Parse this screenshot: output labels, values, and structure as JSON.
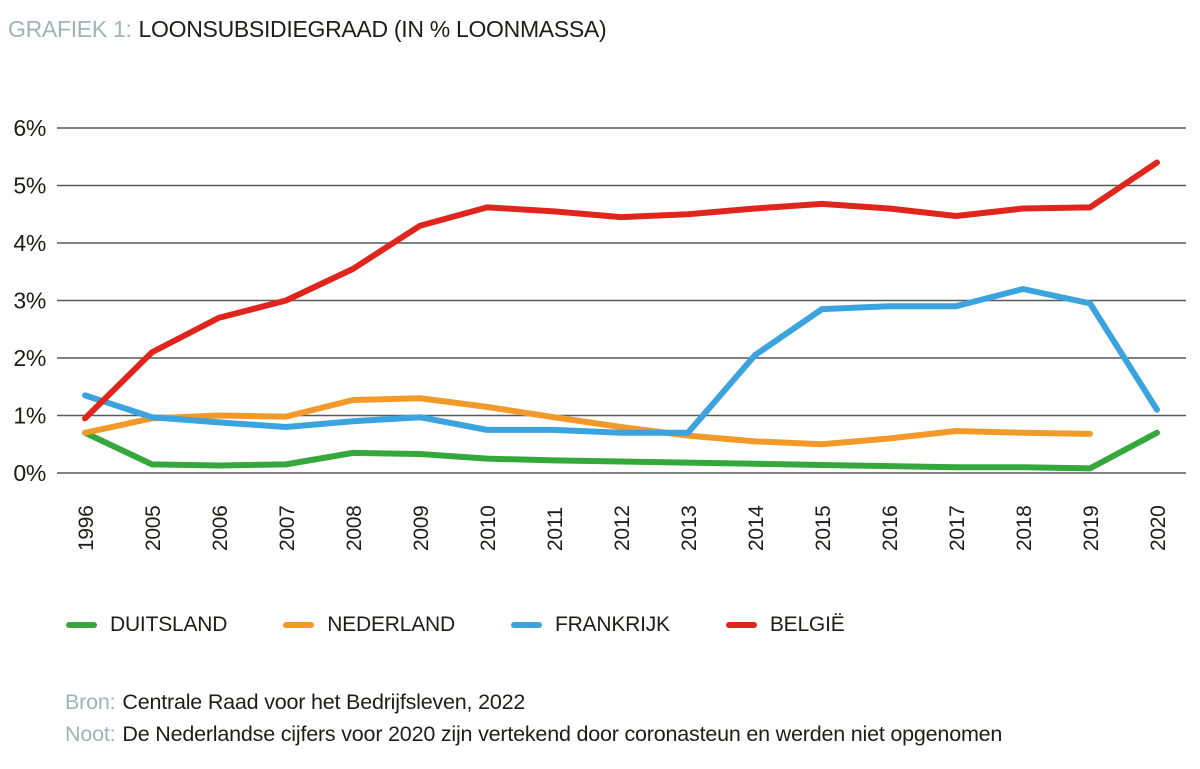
{
  "title": {
    "prefix": "GRAFIEK 1:",
    "text": "LOONSUBSIDIEGRAAD (IN % LOONMASSA)"
  },
  "chart_data": {
    "type": "line",
    "categories": [
      "1996",
      "2005",
      "2006",
      "2007",
      "2008",
      "2009",
      "2010",
      "2011",
      "2012",
      "2013",
      "2014",
      "2015",
      "2016",
      "2017",
      "2018",
      "2019",
      "2020"
    ],
    "series": [
      {
        "name": "DUITSLAND",
        "color": "#35a83c",
        "values": [
          0.7,
          0.15,
          0.13,
          0.15,
          0.35,
          0.33,
          0.25,
          0.22,
          0.2,
          0.18,
          0.16,
          0.14,
          0.12,
          0.1,
          0.1,
          0.08,
          0.7
        ]
      },
      {
        "name": "NEDERLAND",
        "color": "#f29a29",
        "values": [
          0.7,
          0.95,
          1.0,
          0.98,
          1.27,
          1.3,
          1.15,
          0.97,
          0.8,
          0.65,
          0.55,
          0.5,
          0.6,
          0.73,
          0.7,
          0.68,
          null
        ]
      },
      {
        "name": "FRANKRIJK",
        "color": "#3ba3dd",
        "values": [
          1.35,
          0.97,
          0.88,
          0.8,
          0.9,
          0.97,
          0.75,
          0.75,
          0.7,
          0.7,
          2.05,
          2.85,
          2.9,
          2.9,
          3.2,
          2.95,
          1.1
        ]
      },
      {
        "name": "BELGIË",
        "color": "#e0261c",
        "values": [
          0.95,
          2.1,
          2.7,
          3.0,
          3.55,
          4.3,
          4.62,
          4.55,
          4.45,
          4.5,
          4.6,
          4.68,
          4.6,
          4.47,
          4.6,
          4.62,
          5.4
        ]
      }
    ],
    "yticks": [
      "0%",
      "1%",
      "2%",
      "3%",
      "4%",
      "5%",
      "6%"
    ],
    "ylim": [
      0,
      6
    ],
    "grid": "horizontal",
    "legend_position": "bottom",
    "title": "LOONSUBSIDIEGRAAD (IN % LOONMASSA)",
    "xlabel": "",
    "ylabel": ""
  },
  "footer": {
    "bron_label": "Bron:",
    "bron_text": "Centrale Raad voor het Bedrijfsleven, 2022",
    "noot_label": "Noot:",
    "noot_text": "De Nederlandse cijfers voor 2020 zijn vertekend door coronasteun en werden niet opgenomen"
  },
  "colors": {
    "accent": "#9fb4b9",
    "text": "#1d1d1b",
    "grid": "#59595b",
    "background": "#ffffff"
  }
}
